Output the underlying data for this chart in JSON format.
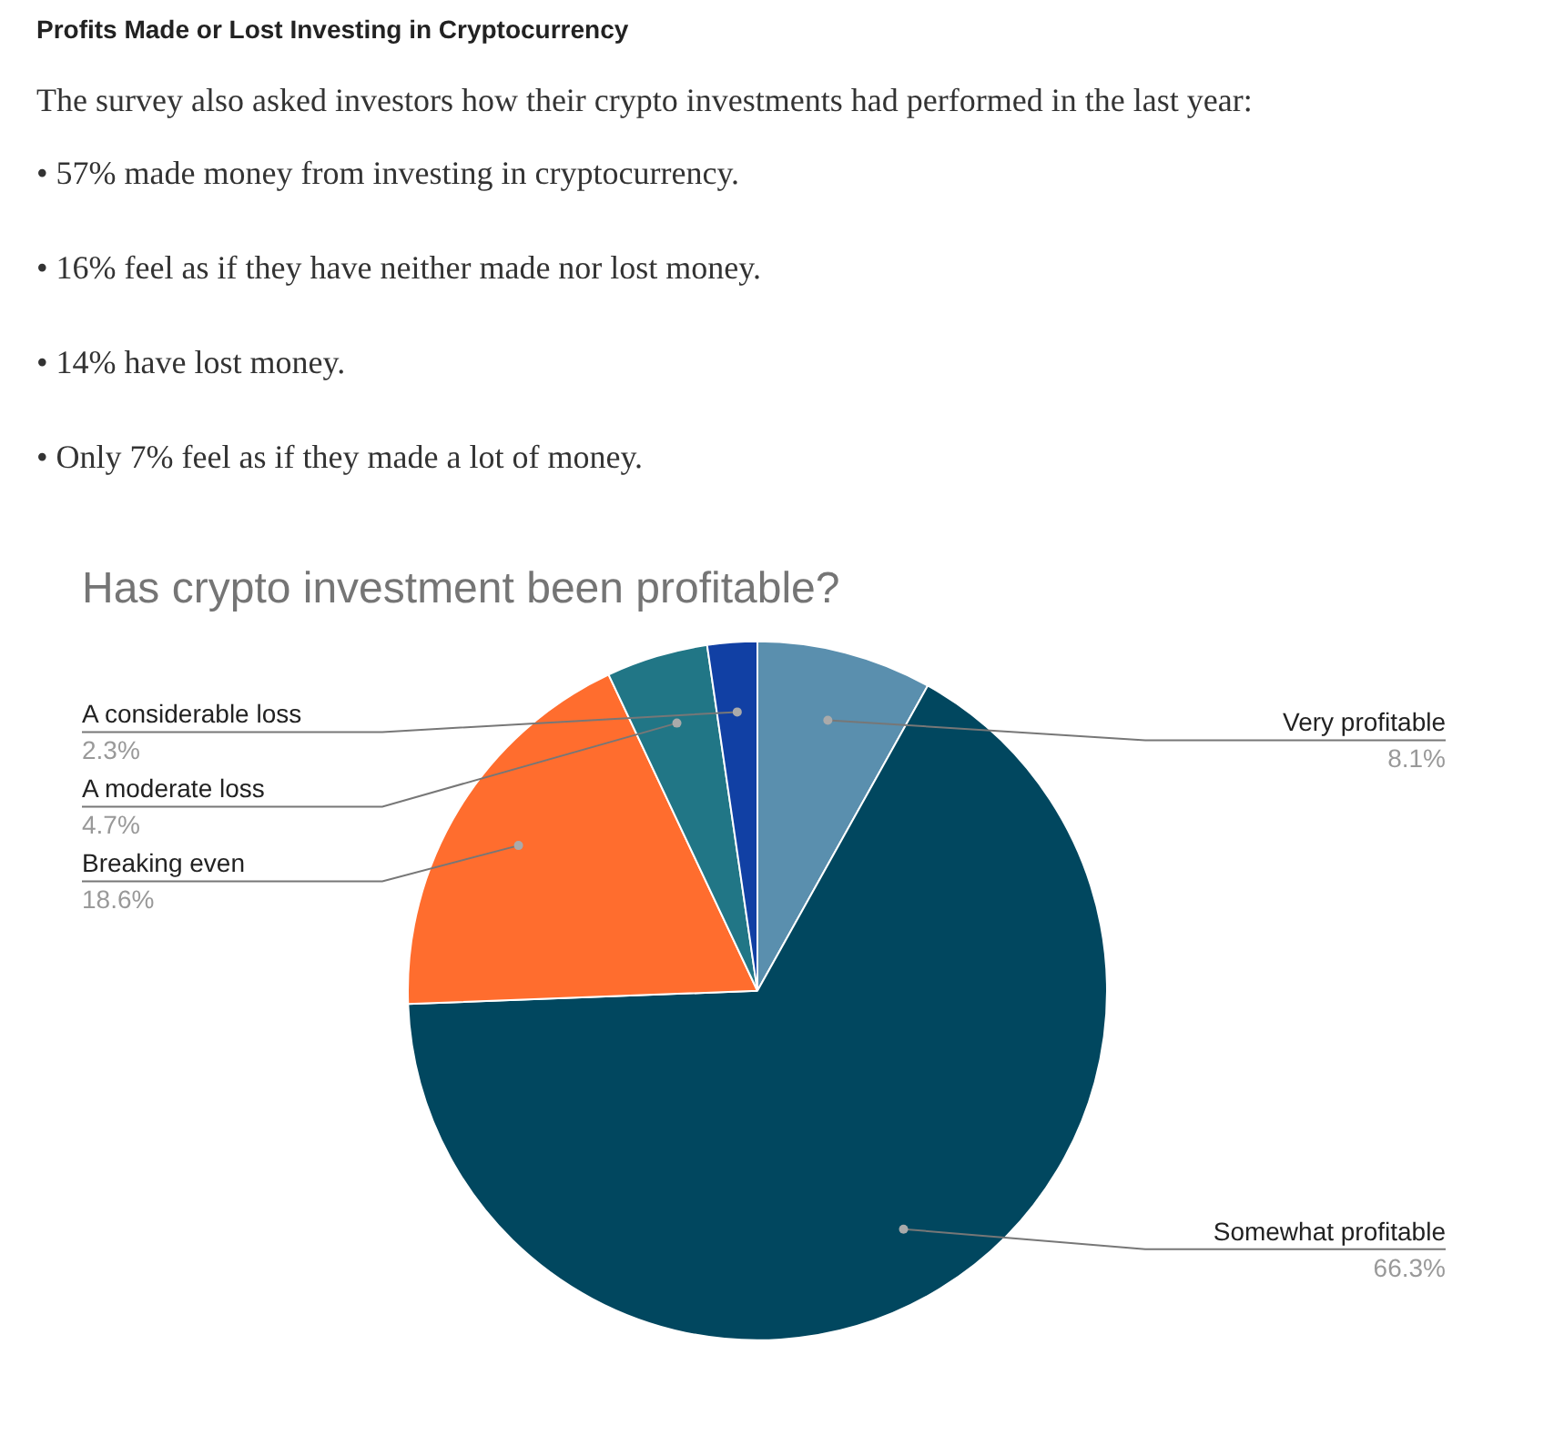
{
  "chart_data": {
    "type": "pie",
    "title": "Has crypto investment been profitable?",
    "annotations": [
      "Profits Made or Lost Investing in Cryptocurrency",
      "The survey also asked investors how their crypto investments had performed in the last year:",
      "• 57% made money from investing in cryptocurrency.",
      "• 16% feel as if they have neither made nor lost money.",
      "• 14% have lost money.",
      "• Only 7% feel as if they made a lot of money."
    ],
    "categories": [
      "Very profitable",
      "Somewhat profitable",
      "Breaking even",
      "A moderate loss",
      "A considerable loss"
    ],
    "values": [
      8.1,
      66.3,
      18.6,
      4.7,
      2.3
    ],
    "value_labels": [
      "8.1%",
      "66.3%",
      "18.6%",
      "4.7%",
      "2.3%"
    ],
    "colors": [
      "#5a8fae",
      "#01475f",
      "#ff6d2e",
      "#217686",
      "#1140a4"
    ],
    "legend": false
  }
}
